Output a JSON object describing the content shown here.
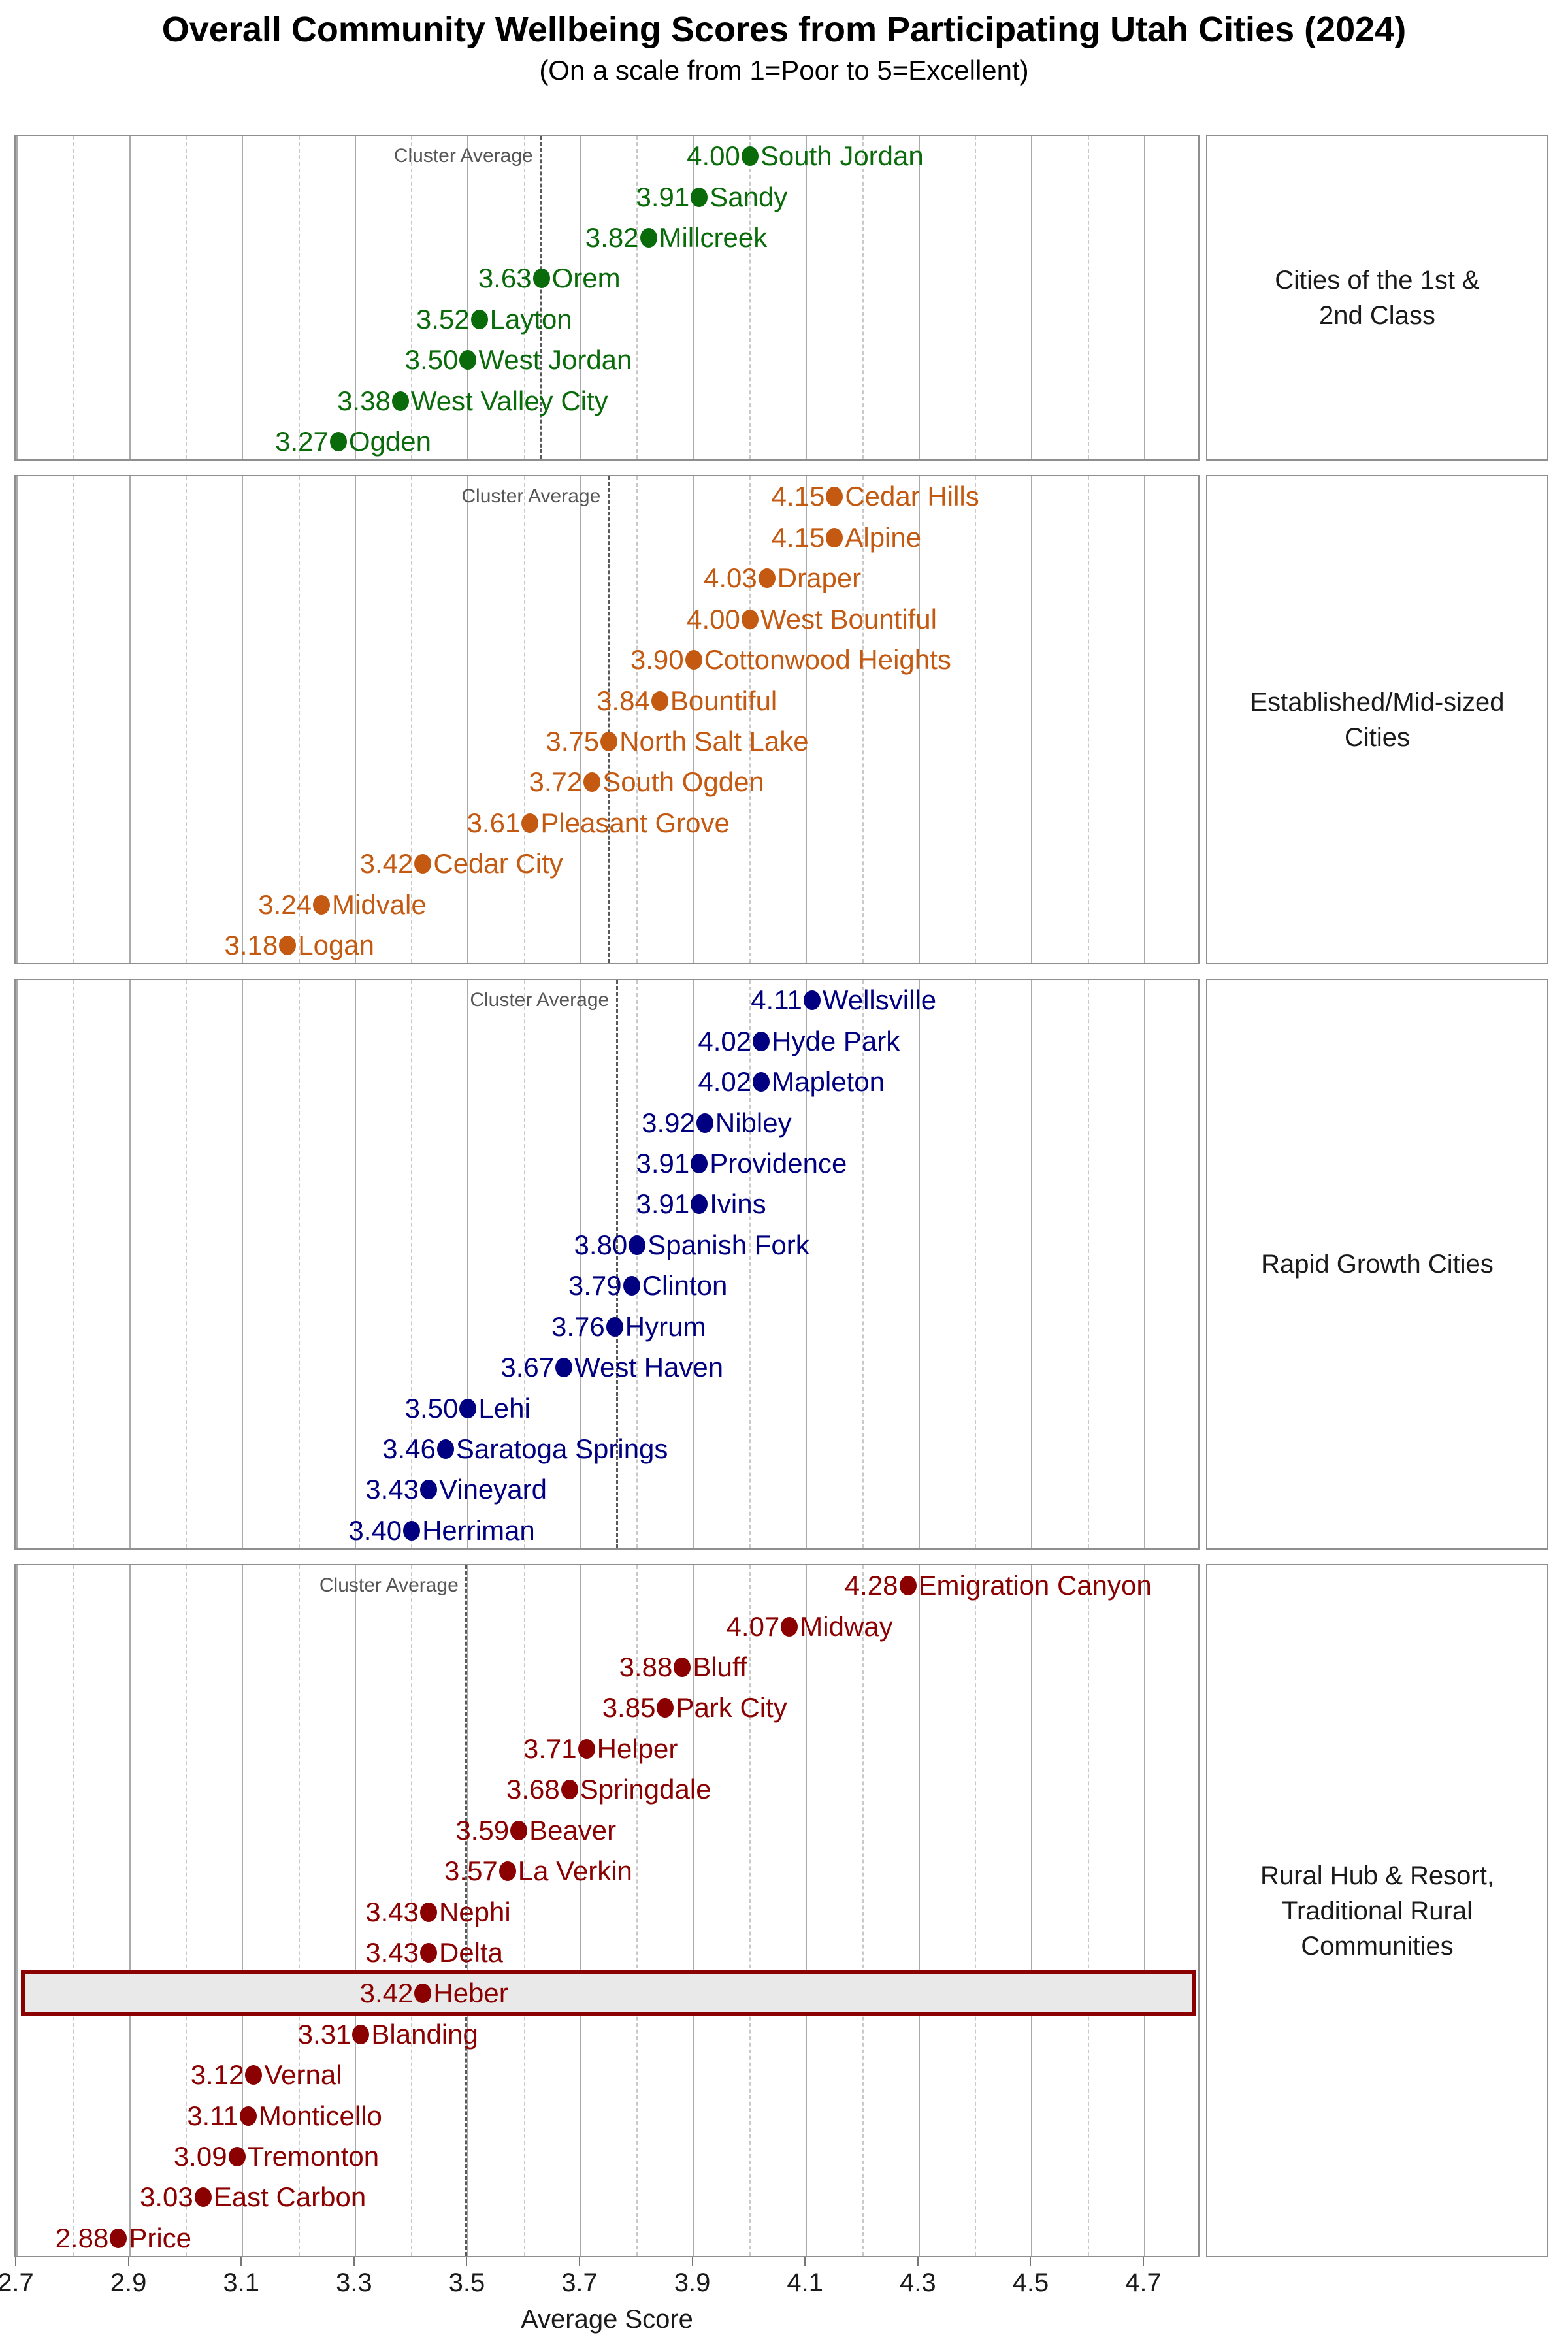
{
  "title": "Overall Community Wellbeing Scores from Participating Utah Cities (2024)",
  "subtitle": "(On a scale from 1=Poor to 5=Excellent)",
  "cluster_average_label": "Cluster Average",
  "x_axis": {
    "label": "Average Score",
    "min": 2.7,
    "max": 4.8,
    "major_ticks": [
      2.7,
      2.9,
      3.1,
      3.3,
      3.5,
      3.7,
      3.9,
      4.1,
      4.3,
      4.5,
      4.7
    ],
    "minor_ticks": [
      2.8,
      3.0,
      3.2,
      3.4,
      3.6,
      3.8,
      4.0,
      4.2,
      4.4,
      4.6
    ],
    "grid": "major-solid, minor-dashed"
  },
  "chart_data": {
    "type": "scatter",
    "variant": "faceted-dot-plot",
    "legend_position": "none",
    "panels": [
      {
        "id": "cities-1st-2nd-class",
        "label_lines": [
          "Cities of the 1st &",
          "2nd Class"
        ],
        "color": "#0a6b0a",
        "cluster_average": 3.629,
        "cities": [
          {
            "name": "South Jordan",
            "score": 4.0
          },
          {
            "name": "Sandy",
            "score": 3.91
          },
          {
            "name": "Millcreek",
            "score": 3.82
          },
          {
            "name": "Orem",
            "score": 3.63
          },
          {
            "name": "Layton",
            "score": 3.52
          },
          {
            "name": "West Jordan",
            "score": 3.5
          },
          {
            "name": "West Valley City",
            "score": 3.38
          },
          {
            "name": "Ogden",
            "score": 3.27
          }
        ]
      },
      {
        "id": "established-mid-sized",
        "label_lines": [
          "Established/Mid-sized",
          "Cities"
        ],
        "color": "#c45a11",
        "cluster_average": 3.749,
        "cities": [
          {
            "name": "Cedar Hills",
            "score": 4.15
          },
          {
            "name": "Alpine",
            "score": 4.15
          },
          {
            "name": "Draper",
            "score": 4.03
          },
          {
            "name": "West Bountiful",
            "score": 4.0
          },
          {
            "name": "Cottonwood Heights",
            "score": 3.9
          },
          {
            "name": "Bountiful",
            "score": 3.84
          },
          {
            "name": "North Salt Lake",
            "score": 3.75
          },
          {
            "name": "South Ogden",
            "score": 3.72
          },
          {
            "name": "Pleasant Grove",
            "score": 3.61
          },
          {
            "name": "Cedar City",
            "score": 3.42
          },
          {
            "name": "Midvale",
            "score": 3.24
          },
          {
            "name": "Logan",
            "score": 3.18
          }
        ]
      },
      {
        "id": "rapid-growth",
        "label_lines": [
          "Rapid Growth Cities"
        ],
        "color": "#000080",
        "cluster_average": 3.764,
        "cities": [
          {
            "name": "Wellsville",
            "score": 4.11
          },
          {
            "name": "Hyde Park",
            "score": 4.02
          },
          {
            "name": "Mapleton",
            "score": 4.02
          },
          {
            "name": "Nibley",
            "score": 3.92
          },
          {
            "name": "Providence",
            "score": 3.91
          },
          {
            "name": "Ivins",
            "score": 3.91
          },
          {
            "name": "Spanish Fork",
            "score": 3.8
          },
          {
            "name": "Clinton",
            "score": 3.79
          },
          {
            "name": "Hyrum",
            "score": 3.76
          },
          {
            "name": "West Haven",
            "score": 3.67
          },
          {
            "name": "Lehi",
            "score": 3.5
          },
          {
            "name": "Saratoga Springs",
            "score": 3.46
          },
          {
            "name": "Vineyard",
            "score": 3.43
          },
          {
            "name": "Herriman",
            "score": 3.4
          }
        ]
      },
      {
        "id": "rural-hub-resort-traditional",
        "label_lines": [
          "Rural Hub & Resort,",
          "Traditional Rural",
          "Communities"
        ],
        "color": "#8b0000",
        "cluster_average": 3.497,
        "cities": [
          {
            "name": "Emigration Canyon",
            "score": 4.28
          },
          {
            "name": "Midway",
            "score": 4.07
          },
          {
            "name": "Bluff",
            "score": 3.88
          },
          {
            "name": "Park City",
            "score": 3.85
          },
          {
            "name": "Helper",
            "score": 3.71
          },
          {
            "name": "Springdale",
            "score": 3.68
          },
          {
            "name": "Beaver",
            "score": 3.59
          },
          {
            "name": "La Verkin",
            "score": 3.57
          },
          {
            "name": "Nephi",
            "score": 3.43
          },
          {
            "name": "Delta",
            "score": 3.43
          },
          {
            "name": "Heber",
            "score": 3.42
          },
          {
            "name": "Blanding",
            "score": 3.31
          },
          {
            "name": "Vernal",
            "score": 3.12
          },
          {
            "name": "Monticello",
            "score": 3.11
          },
          {
            "name": "Tremonton",
            "score": 3.09
          },
          {
            "name": "East Carbon",
            "score": 3.03
          },
          {
            "name": "Price",
            "score": 2.88
          }
        ]
      }
    ],
    "highlight": {
      "city": "Heber",
      "fill": "#e9e9e9",
      "border_color": "#8b0000"
    }
  }
}
